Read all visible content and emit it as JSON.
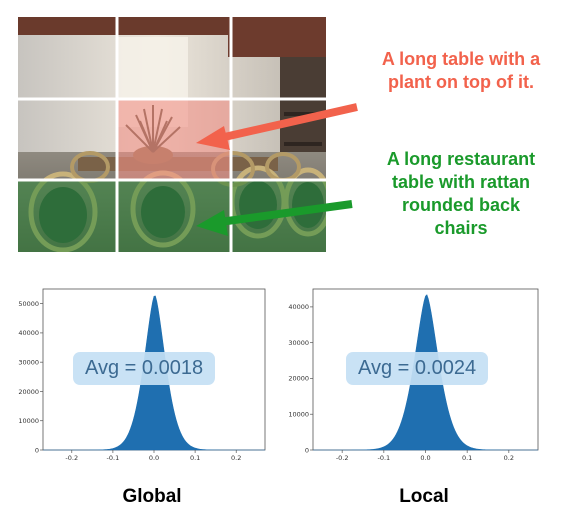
{
  "captions": {
    "plant_table": [
      "A long table with a",
      "plant on top of it."
    ],
    "rattan_table": [
      "A long restaurant",
      "table with rattan",
      "rounded back",
      "chairs"
    ]
  },
  "colors": {
    "red_caption": "#f2624c",
    "green_caption": "#1a9a2b",
    "histogram_fill": "#1f6fb0",
    "highlight_red": "#f08f86",
    "highlight_green": "#2f8a3a"
  },
  "image_grid": {
    "rows": 3,
    "cols": 3,
    "highlighted_red": [
      [
        1,
        1
      ]
    ],
    "highlighted_green": [
      [
        2,
        0
      ],
      [
        2,
        1
      ],
      [
        2,
        2
      ]
    ]
  },
  "panels": {
    "global": {
      "label": "Global",
      "avg_text": "Avg = 0.0018"
    },
    "local": {
      "label": "Local",
      "avg_text": "Avg = 0.0024"
    }
  },
  "chart_data": [
    {
      "type": "area",
      "title": "",
      "xlabel": "",
      "ylabel": "",
      "xlim": [
        -0.27,
        0.27
      ],
      "ylim": [
        0,
        55000
      ],
      "x_ticks": [
        -0.2,
        -0.1,
        0.0,
        0.1,
        0.2
      ],
      "x_tick_labels": [
        "-0.2",
        "-0.1",
        "0.0",
        "0.1",
        "0.2"
      ],
      "y_ticks": [
        0,
        10000,
        20000,
        30000,
        40000,
        50000
      ],
      "y_tick_labels": [
        "0",
        "10000",
        "20000",
        "30000",
        "40000",
        "50000"
      ],
      "mean": 0.0018,
      "peak": 53000,
      "std": 0.032,
      "grid": false,
      "legend": "none"
    },
    {
      "type": "area",
      "title": "",
      "xlabel": "",
      "ylabel": "",
      "xlim": [
        -0.27,
        0.27
      ],
      "ylim": [
        0,
        45000
      ],
      "x_ticks": [
        -0.2,
        -0.1,
        0.0,
        0.1,
        0.2
      ],
      "x_tick_labels": [
        "-0.2",
        "-0.1",
        "0.0",
        "0.1",
        "0.2"
      ],
      "y_ticks": [
        0,
        10000,
        20000,
        30000,
        40000
      ],
      "y_tick_labels": [
        "0",
        "10000",
        "20000",
        "30000",
        "40000"
      ],
      "mean": 0.0024,
      "peak": 43500,
      "std": 0.036,
      "grid": false,
      "legend": "none"
    }
  ]
}
